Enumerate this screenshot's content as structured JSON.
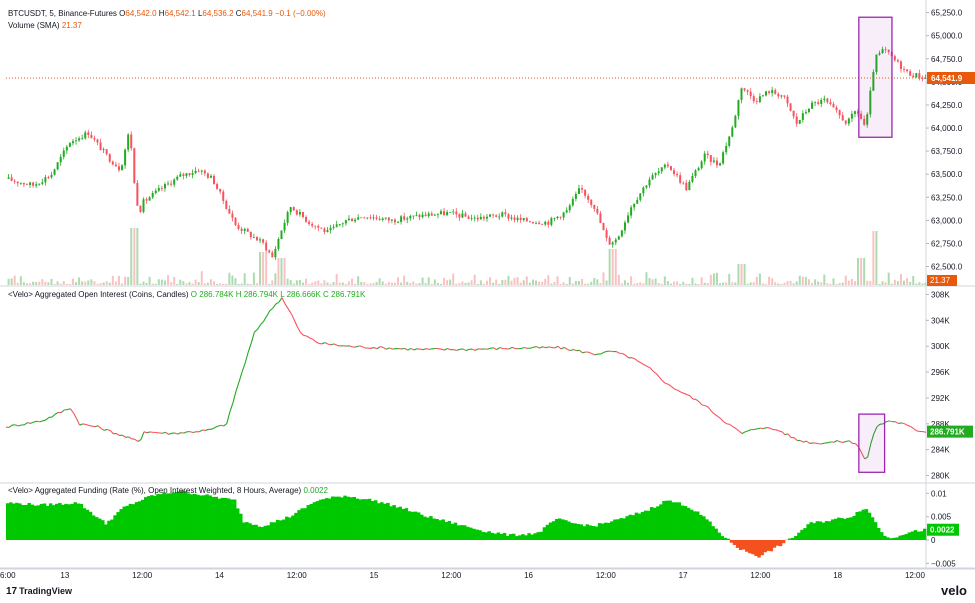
{
  "header": {
    "symbol": "BTCUSDT, 5, Binance-Futures",
    "open_label": "O",
    "open": "64,542.0",
    "high_label": "H",
    "high": "64,542.1",
    "low_label": "L",
    "low": "64,536.2",
    "close_label": "C",
    "close": "64,541.9",
    "change": "−0.1 (−0.00%)",
    "volume_label": "Volume (SMA)",
    "volume_value": "21.37"
  },
  "oi_legend": {
    "title": "<Velo> Aggregated Open Interest (Coins, Candles)",
    "values": "O 286.784K  H 286.794K  L 286.666K  C 286.791K"
  },
  "funding_legend": {
    "title": "<Velo> Aggregated Funding (Rate (%), Open Interest Weighted, 8 Hours, Average)",
    "value": "0.0022"
  },
  "footer": {
    "brand": "TradingView",
    "brand_mark": "17",
    "velo": "velo"
  },
  "colors": {
    "up": "#22ab21",
    "down": "#f7525f",
    "price_line": "#e8590c",
    "funding_pos": "#00c800",
    "funding_neg": "#f4511e",
    "box": "#9c27b0",
    "oi_label": "#22ab21"
  },
  "chart_data": [
    {
      "type": "candlestick",
      "name": "BTCUSDT, 5, Binance-Futures",
      "yticks": [
        "62,500.0",
        "62,750.0",
        "63,000.0",
        "63,250.0",
        "63,500.0",
        "63,750.0",
        "64,000.0",
        "64,250.0",
        "64,500.0",
        "64,750.0",
        "65,000.0",
        "65,250.0"
      ],
      "ylim": [
        62300,
        65300
      ],
      "last_price_label": "64,541.9",
      "last_price": 64541.9,
      "path_points": [
        [
          0,
          63450
        ],
        [
          0.03,
          63380
        ],
        [
          0.05,
          63500
        ],
        [
          0.07,
          63850
        ],
        [
          0.09,
          63950
        ],
        [
          0.11,
          63700
        ],
        [
          0.125,
          63550
        ],
        [
          0.135,
          63990
        ],
        [
          0.14,
          63400
        ],
        [
          0.145,
          63080
        ],
        [
          0.15,
          63200
        ],
        [
          0.17,
          63350
        ],
        [
          0.19,
          63480
        ],
        [
          0.21,
          63550
        ],
        [
          0.225,
          63450
        ],
        [
          0.24,
          63150
        ],
        [
          0.25,
          62950
        ],
        [
          0.265,
          62850
        ],
        [
          0.28,
          62750
        ],
        [
          0.29,
          62600
        ],
        [
          0.3,
          62900
        ],
        [
          0.31,
          63150
        ],
        [
          0.33,
          62980
        ],
        [
          0.35,
          62870
        ],
        [
          0.37,
          63000
        ],
        [
          0.39,
          63050
        ],
        [
          0.42,
          63000
        ],
        [
          0.45,
          63050
        ],
        [
          0.48,
          63080
        ],
        [
          0.51,
          63020
        ],
        [
          0.54,
          63060
        ],
        [
          0.56,
          63000
        ],
        [
          0.59,
          62980
        ],
        [
          0.61,
          63100
        ],
        [
          0.625,
          63350
        ],
        [
          0.64,
          63150
        ],
        [
          0.655,
          62750
        ],
        [
          0.665,
          62800
        ],
        [
          0.68,
          63150
        ],
        [
          0.7,
          63450
        ],
        [
          0.72,
          63600
        ],
        [
          0.74,
          63350
        ],
        [
          0.76,
          63700
        ],
        [
          0.775,
          63600
        ],
        [
          0.79,
          64000
        ],
        [
          0.8,
          64450
        ],
        [
          0.815,
          64300
        ],
        [
          0.83,
          64400
        ],
        [
          0.845,
          64350
        ],
        [
          0.86,
          64050
        ],
        [
          0.875,
          64250
        ],
        [
          0.89,
          64300
        ],
        [
          0.905,
          64150
        ],
        [
          0.915,
          64050
        ],
        [
          0.925,
          64200
        ],
        [
          0.935,
          64000
        ],
        [
          0.945,
          64750
        ],
        [
          0.955,
          64850
        ],
        [
          0.965,
          64750
        ],
        [
          0.98,
          64600
        ],
        [
          1.0,
          64541.9
        ]
      ],
      "volume_spikes": [
        [
          0.14,
          0.95
        ],
        [
          0.28,
          0.55
        ],
        [
          0.3,
          0.45
        ],
        [
          0.66,
          0.6
        ],
        [
          0.945,
          0.9
        ],
        [
          0.93,
          0.45
        ],
        [
          0.8,
          0.35
        ]
      ]
    },
    {
      "type": "line",
      "name": "<Velo> Aggregated Open Interest (Coins, Candles)",
      "yticks": [
        "280K",
        "284K",
        "288K",
        "292K",
        "296K",
        "300K",
        "304K",
        "308K"
      ],
      "ylim": [
        279000,
        309000
      ],
      "last_label": "286.791K",
      "last_value": 286791,
      "path_points": [
        [
          0,
          287500
        ],
        [
          0.04,
          288500
        ],
        [
          0.07,
          290500
        ],
        [
          0.08,
          288000
        ],
        [
          0.1,
          287500
        ],
        [
          0.12,
          286500
        ],
        [
          0.145,
          285200
        ],
        [
          0.15,
          286800
        ],
        [
          0.18,
          286500
        ],
        [
          0.22,
          287000
        ],
        [
          0.24,
          288000
        ],
        [
          0.25,
          293000
        ],
        [
          0.27,
          302000
        ],
        [
          0.29,
          306000
        ],
        [
          0.3,
          307500
        ],
        [
          0.31,
          305000
        ],
        [
          0.32,
          302000
        ],
        [
          0.34,
          300500
        ],
        [
          0.37,
          300000
        ],
        [
          0.4,
          299800
        ],
        [
          0.45,
          299500
        ],
        [
          0.5,
          299500
        ],
        [
          0.55,
          299700
        ],
        [
          0.6,
          299800
        ],
        [
          0.625,
          299200
        ],
        [
          0.64,
          298800
        ],
        [
          0.66,
          299200
        ],
        [
          0.68,
          298200
        ],
        [
          0.7,
          296500
        ],
        [
          0.72,
          294000
        ],
        [
          0.74,
          292500
        ],
        [
          0.76,
          290800
        ],
        [
          0.78,
          288500
        ],
        [
          0.8,
          286500
        ],
        [
          0.82,
          287500
        ],
        [
          0.84,
          287000
        ],
        [
          0.86,
          285500
        ],
        [
          0.88,
          285000
        ],
        [
          0.9,
          285200
        ],
        [
          0.915,
          285300
        ],
        [
          0.925,
          285000
        ],
        [
          0.935,
          282000
        ],
        [
          0.945,
          287500
        ],
        [
          0.96,
          288500
        ],
        [
          0.975,
          288000
        ],
        [
          0.99,
          287000
        ],
        [
          1.0,
          286791
        ]
      ]
    },
    {
      "type": "area",
      "name": "<Velo> Aggregated Funding (Rate (%), Open Interest Weighted, 8 Hours, Average)",
      "yticks": [
        "−0.005",
        "0",
        "0.005",
        "0.01"
      ],
      "ylim": [
        -0.006,
        0.012
      ],
      "last_label": "0.0022",
      "last_value": 0.0022,
      "path_points": [
        [
          0,
          0.008
        ],
        [
          0.04,
          0.0075
        ],
        [
          0.08,
          0.008
        ],
        [
          0.1,
          0.005
        ],
        [
          0.11,
          0.0035
        ],
        [
          0.13,
          0.007
        ],
        [
          0.16,
          0.0095
        ],
        [
          0.19,
          0.0105
        ],
        [
          0.22,
          0.0095
        ],
        [
          0.25,
          0.0085
        ],
        [
          0.26,
          0.004
        ],
        [
          0.28,
          0.003
        ],
        [
          0.31,
          0.005
        ],
        [
          0.34,
          0.0085
        ],
        [
          0.37,
          0.0095
        ],
        [
          0.4,
          0.0085
        ],
        [
          0.43,
          0.007
        ],
        [
          0.46,
          0.005
        ],
        [
          0.49,
          0.0035
        ],
        [
          0.52,
          0.002
        ],
        [
          0.55,
          0.001
        ],
        [
          0.58,
          0.0015
        ],
        [
          0.6,
          0.0045
        ],
        [
          0.62,
          0.0035
        ],
        [
          0.64,
          0.003
        ],
        [
          0.67,
          0.0045
        ],
        [
          0.7,
          0.0065
        ],
        [
          0.72,
          0.0085
        ],
        [
          0.74,
          0.0075
        ],
        [
          0.76,
          0.005
        ],
        [
          0.78,
          0.001
        ],
        [
          0.8,
          -0.002
        ],
        [
          0.82,
          -0.0035
        ],
        [
          0.84,
          -0.0015
        ],
        [
          0.86,
          0.001
        ],
        [
          0.875,
          0.0035
        ],
        [
          0.89,
          0.004
        ],
        [
          0.905,
          0.0045
        ],
        [
          0.92,
          0.005
        ],
        [
          0.935,
          0.007
        ],
        [
          0.945,
          0.0045
        ],
        [
          0.955,
          0.001
        ],
        [
          0.965,
          0.0005
        ],
        [
          0.98,
          0.0015
        ],
        [
          1.0,
          0.0022
        ]
      ]
    }
  ],
  "x_axis": {
    "ticks": [
      {
        "frac": 0.0,
        "label": "6:00"
      },
      {
        "frac": 0.064,
        "label": "13"
      },
      {
        "frac": 0.148,
        "label": "12:00"
      },
      {
        "frac": 0.232,
        "label": "14"
      },
      {
        "frac": 0.316,
        "label": "12:00"
      },
      {
        "frac": 0.4,
        "label": "15"
      },
      {
        "frac": 0.484,
        "label": "12:00"
      },
      {
        "frac": 0.568,
        "label": "16"
      },
      {
        "frac": 0.652,
        "label": "12:00"
      },
      {
        "frac": 0.736,
        "label": "17"
      },
      {
        "frac": 0.82,
        "label": "12:00"
      },
      {
        "frac": 0.904,
        "label": "18"
      },
      {
        "frac": 0.988,
        "label": "12:00"
      }
    ]
  },
  "highlight_boxes": [
    {
      "pane": 0,
      "x0": 0.927,
      "x1": 0.963,
      "y0": 65200,
      "y1": 63900
    },
    {
      "pane": 1,
      "x0": 0.927,
      "x1": 0.955,
      "y0": 289500,
      "y1": 280500
    }
  ]
}
